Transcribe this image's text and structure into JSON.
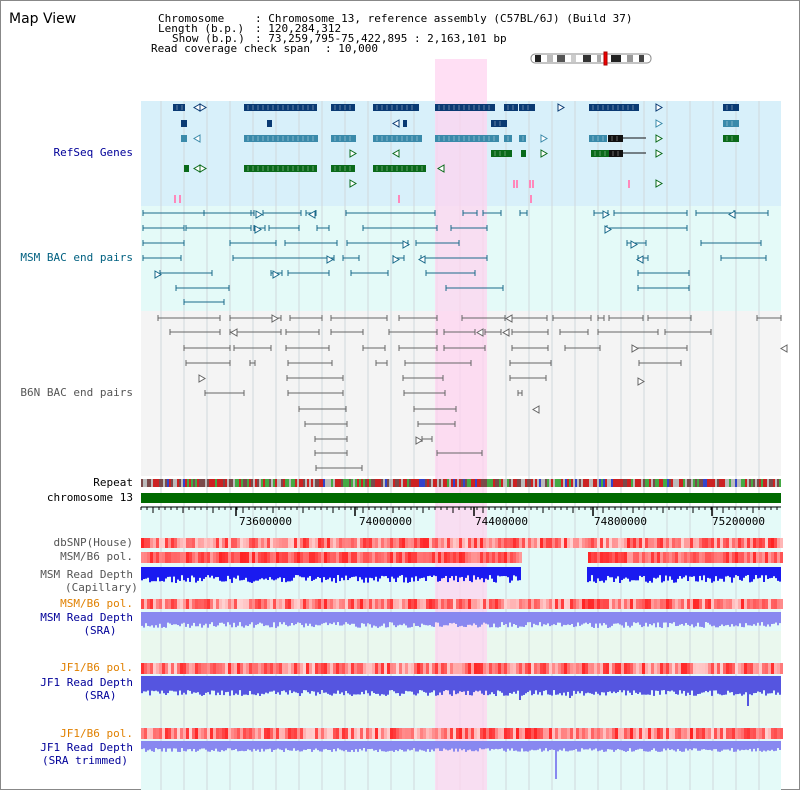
{
  "title": "Map View",
  "info": {
    "chromosome_key": "Chromosome",
    "chromosome_val": ": Chromosome 13, reference assembly (C57BL/6J) (Build 37)",
    "length_key": "Length (b.p.)",
    "length_val": ": 120,284,312",
    "show_key": "Show (b.p.)",
    "show_val": ": 73,259,795-75,422,895 : 2,163,101 bp",
    "coverage_key": "Read coverage check span",
    "coverage_val": ": 10,000"
  },
  "tracks": {
    "refseq": "RefSeq Genes",
    "msm_bac": "MSM BAC end pairs",
    "b6n_bac": "B6N BAC end pairs",
    "repeat": "Repeat",
    "chrom": "chromosome 13",
    "dbsnp": "dbSNP(House)",
    "msm_pol": "MSM/B6 pol.",
    "msm_rd_cap_1": "MSM Read Depth",
    "msm_rd_cap_2": "(Capillary)",
    "msm_pol2": "MSM/B6 pol.",
    "msm_rd_sra_1": "MSM Read Depth",
    "msm_rd_sra_2": "(SRA)",
    "jf1_pol": "JF1/B6 pol.",
    "jf1_rd_sra_1": "JF1 Read Depth",
    "jf1_rd_sra_2": "(SRA)",
    "jf1_pol2": "JF1/B6 pol.",
    "jf1_rd_trim_1": "JF1 Read Depth",
    "jf1_rd_trim_2": "(SRA trimmed)"
  },
  "axis": {
    "ticks": [
      "73600000",
      "74000000",
      "74400000",
      "74800000",
      "75200000"
    ]
  },
  "colors": {
    "refseq_bg": "#d8f0fa",
    "light_bg": "#e4faf8",
    "gray_bg": "#f4f4f4",
    "highlight": "#ffd4f0",
    "dark_blue": "#0a3a73",
    "mid_blue": "#3a8aaa",
    "green": "#0a6a1a",
    "pink": "#ff88bb",
    "teal": "#1a6a8a",
    "gray": "#666666",
    "chrom_green": "#006a00",
    "label_blue": "#000099",
    "label_teal": "#006080",
    "label_orange": "#e08000",
    "label_gray": "#555555",
    "msm_depth_blue": "#1a1af0",
    "sra_blue": "#8888f0",
    "jf1_blue": "#5555e0"
  }
}
